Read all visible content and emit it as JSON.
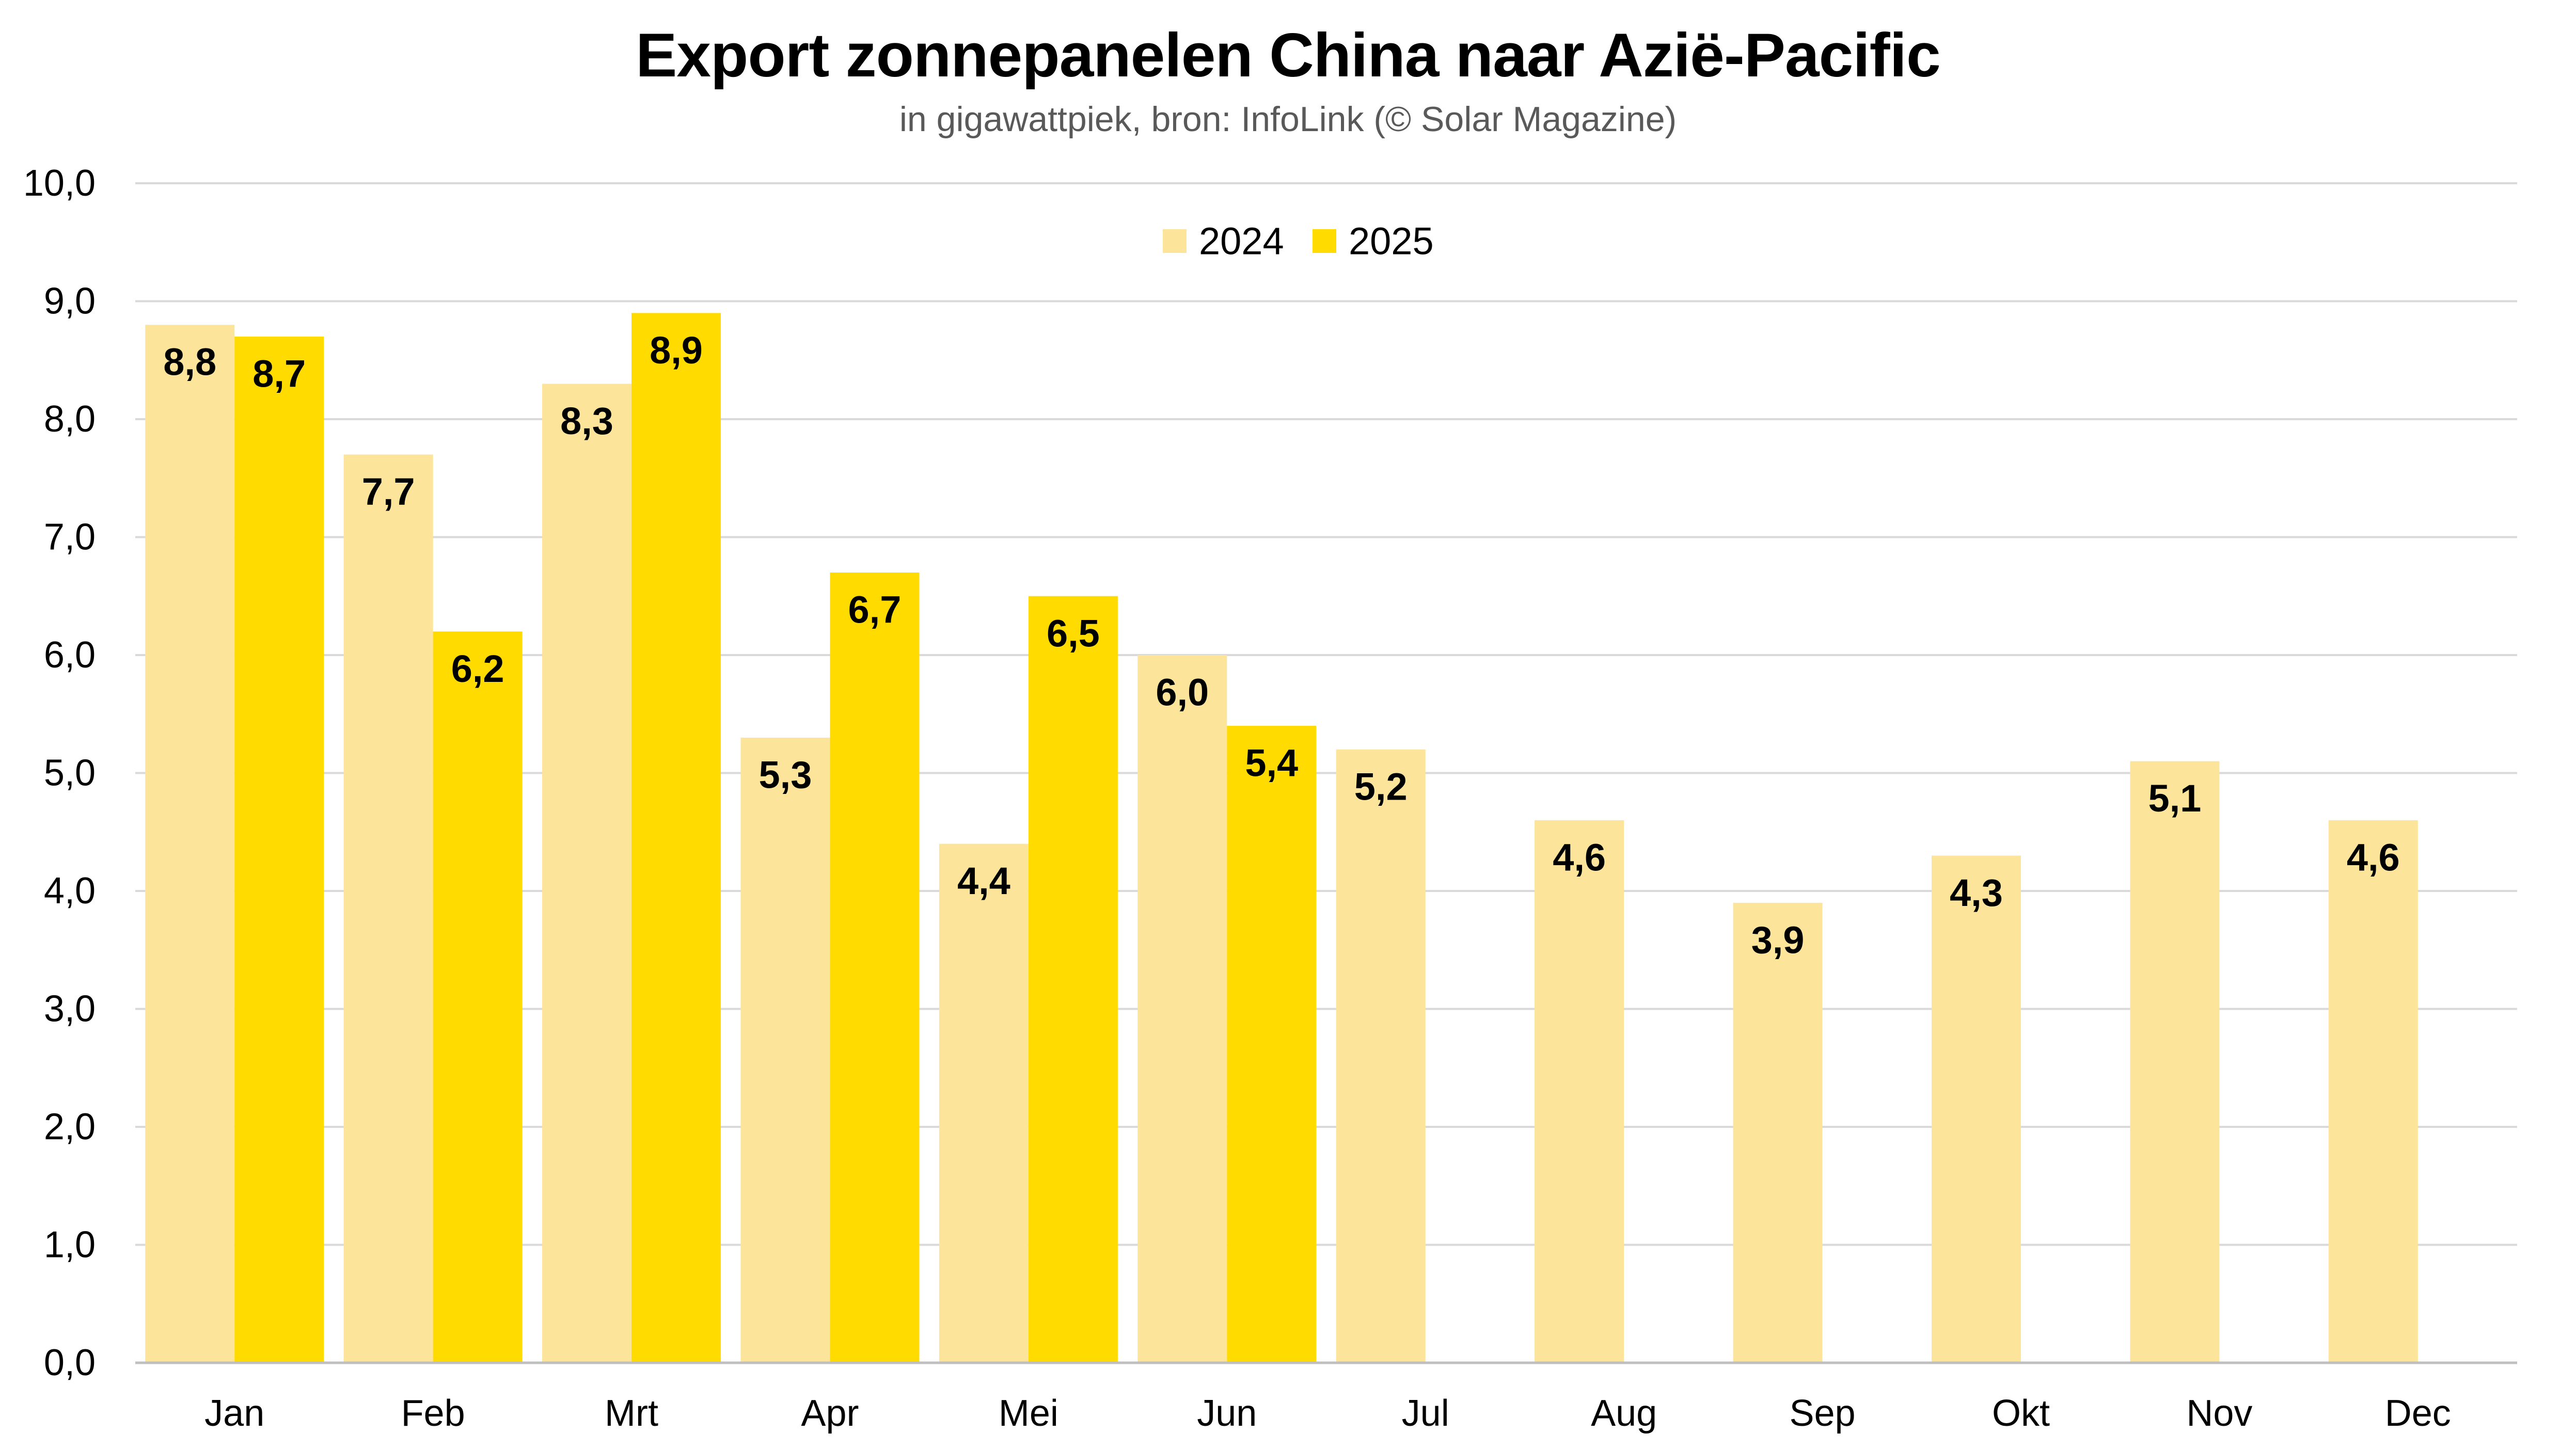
{
  "chart_data": {
    "type": "bar",
    "title": "Export zonnepanelen China naar Azië-Pacific",
    "subtitle": "in gigawattpiek, bron: InfoLink (© Solar Magazine)",
    "xlabel": "",
    "ylabel": "",
    "categories": [
      "Jan",
      "Feb",
      "Mrt",
      "Apr",
      "Mei",
      "Jun",
      "Jul",
      "Aug",
      "Sep",
      "Okt",
      "Nov",
      "Dec"
    ],
    "series": [
      {
        "name": "2024",
        "color": "#FCE59A",
        "values": [
          8.8,
          7.7,
          8.3,
          5.3,
          4.4,
          6.0,
          5.2,
          4.6,
          3.9,
          4.3,
          5.1,
          4.6
        ],
        "labels": [
          "8,8",
          "7,7",
          "8,3",
          "5,3",
          "4,4",
          "6,0",
          "5,2",
          "4,6",
          "3,9",
          "4,3",
          "5,1",
          "4,6"
        ]
      },
      {
        "name": "2025",
        "color": "#FFDB00",
        "values": [
          8.7,
          6.2,
          8.9,
          6.7,
          6.5,
          5.4,
          null,
          null,
          null,
          null,
          null,
          null
        ],
        "labels": [
          "8,7",
          "6,2",
          "8,9",
          "6,7",
          "6,5",
          "5,4",
          "",
          "",
          "",
          "",
          "",
          ""
        ]
      }
    ],
    "ylim": [
      0,
      10
    ],
    "yticks": [
      "0,0",
      "1,0",
      "2,0",
      "3,0",
      "4,0",
      "5,0",
      "6,0",
      "7,0",
      "8,0",
      "9,0",
      "10,0"
    ],
    "grid": true,
    "legend_position": "top-center"
  }
}
